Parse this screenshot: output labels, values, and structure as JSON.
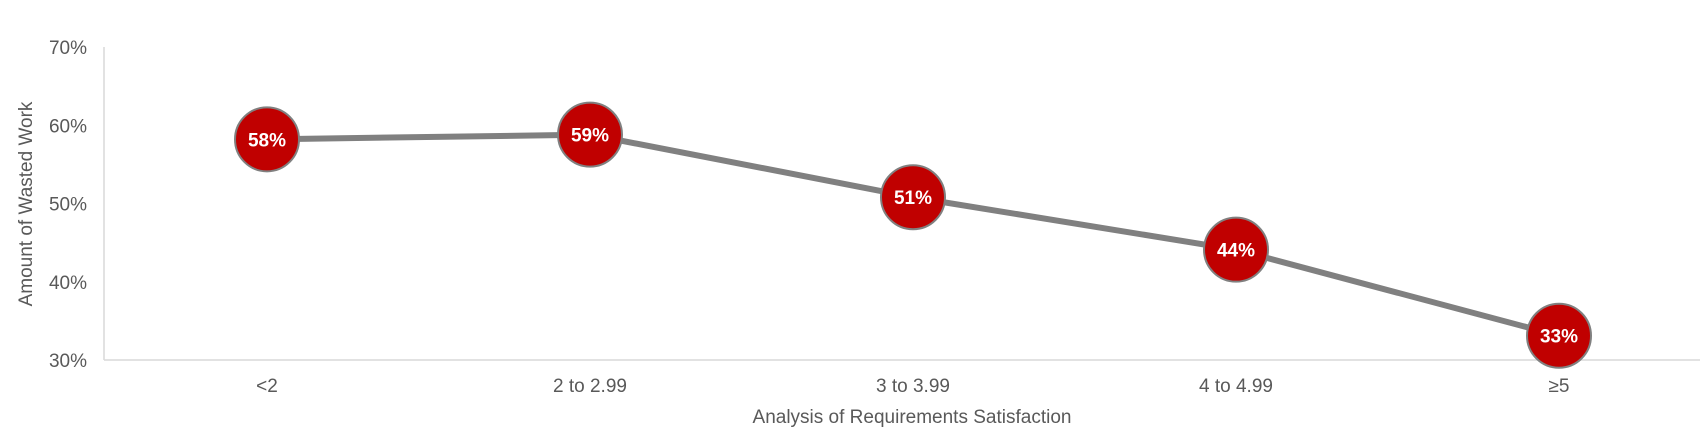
{
  "chart_data": {
    "type": "line",
    "xlabel": "Analysis of Requirements Satisfaction",
    "ylabel": "Amount of Wasted Work",
    "categories": [
      "<2",
      "2 to 2.99",
      "3 to 3.99",
      "4 to 4.99",
      "≥5"
    ],
    "series": [
      {
        "values": [
          58.2,
          58.8,
          50.8,
          44.1,
          33.1
        ]
      }
    ],
    "data_labels": [
      "58%",
      "59%",
      "51%",
      "44%",
      "33%"
    ],
    "ylim": [
      30,
      70
    ],
    "yticks": [
      "30%",
      "40%",
      "50%",
      "60%",
      "70%"
    ],
    "grid": false,
    "line_color": "#808080",
    "marker_color": "#c00000",
    "marker_border_color": "#808080",
    "label_color": "#ffffff"
  }
}
